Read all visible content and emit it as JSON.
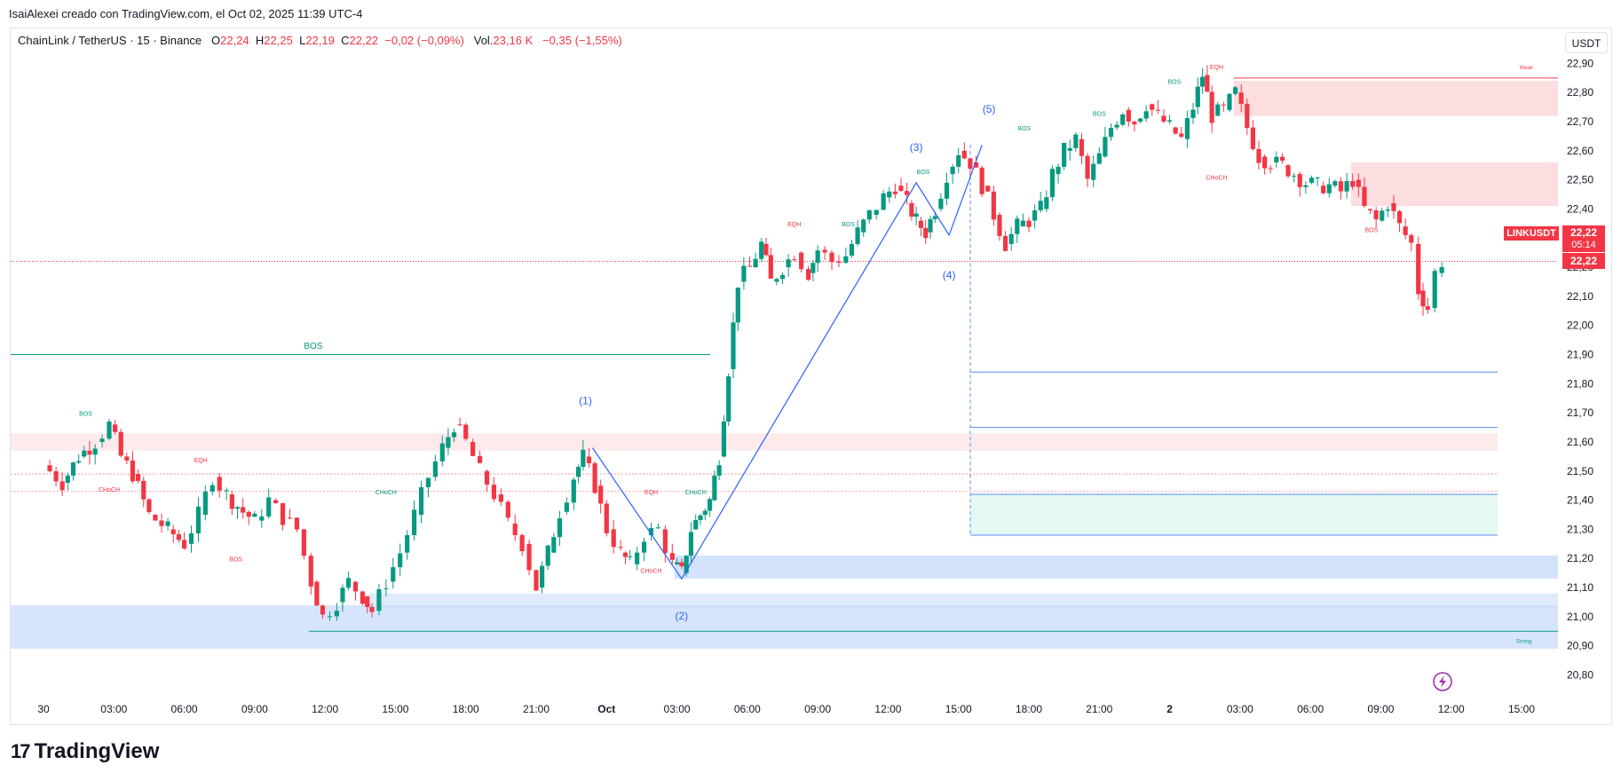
{
  "header": {
    "author_line": "IsaiAlexei creado con TradingView.com, el Oct 02, 2025 11:39 UTC-4"
  },
  "legend": {
    "symbol": "ChainLink / TetherUS · 15 · Binance",
    "o_label": "O",
    "o_value": "22,24",
    "h_label": "H",
    "h_value": "22,25",
    "l_label": "L",
    "l_value": "22,19",
    "c_label": "C",
    "c_value": "22,22",
    "change": "−0,02 (−0,09%)",
    "vol_label": "Vol.",
    "vol_value": "23,16 K",
    "vol_change": "−0,35 (−1,55%)"
  },
  "currency_button": "USDT",
  "ticker_tag": {
    "name": "LINKUSDT",
    "price": "22,22",
    "countdown": "05:14",
    "last": "22,22"
  },
  "brand": {
    "name": "TradingView",
    "logo_glyph": "17"
  },
  "colors": {
    "up": "#089981",
    "down": "#f23645",
    "wave": "#2962ff",
    "bos": "#089981",
    "choch": "#f23645",
    "zone_red": "#fbd5d8",
    "zone_blue": "#c9dcfb",
    "zone_green": "#e3f8ef"
  },
  "chart_data": {
    "type": "candlestick",
    "title": "ChainLink / TetherUS · 15 · Binance",
    "ylim": [
      20.8,
      22.95
    ],
    "y_ticks": [
      "20,80",
      "20,90",
      "21,00",
      "21,10",
      "21,20",
      "21,30",
      "21,40",
      "21,50",
      "21,60",
      "21,70",
      "21,80",
      "21,90",
      "22,00",
      "22,10",
      "22,20",
      "22,30",
      "22,40",
      "22,50",
      "22,60",
      "22,70",
      "22,80",
      "22,90"
    ],
    "y_tick_values": [
      20.8,
      20.9,
      21.0,
      21.1,
      21.2,
      21.3,
      21.4,
      21.5,
      21.6,
      21.7,
      21.8,
      21.9,
      22.0,
      22.1,
      22.2,
      22.3,
      22.4,
      22.5,
      22.6,
      22.7,
      22.8,
      22.9
    ],
    "x_ticks": [
      "30",
      "03:00",
      "06:00",
      "09:00",
      "12:00",
      "15:00",
      "18:00",
      "21:00",
      "Oct",
      "03:00",
      "06:00",
      "09:00",
      "12:00",
      "15:00",
      "18:00",
      "21:00",
      "2",
      "03:00",
      "06:00",
      "09:00",
      "12:00",
      "15:00"
    ],
    "x_tick_hours": [
      0,
      3,
      6,
      9,
      12,
      15,
      18,
      21,
      24,
      27,
      30,
      33,
      36,
      39,
      42,
      45,
      48,
      51,
      54,
      57,
      60,
      63
    ],
    "x_range_hours": [
      -1.4,
      63.6
    ],
    "last_price": 22.22,
    "close_path": [
      [
        0,
        21.52
      ],
      [
        0.8,
        21.46
      ],
      [
        1.5,
        21.55
      ],
      [
        2.2,
        21.6
      ],
      [
        2.8,
        21.66
      ],
      [
        3.3,
        21.55
      ],
      [
        3.8,
        21.49
      ],
      [
        4.5,
        21.35
      ],
      [
        5.3,
        21.3
      ],
      [
        6.0,
        21.25
      ],
      [
        6.6,
        21.35
      ],
      [
        7.2,
        21.48
      ],
      [
        7.8,
        21.42
      ],
      [
        8.5,
        21.36
      ],
      [
        9.0,
        21.33
      ],
      [
        9.6,
        21.4
      ],
      [
        10.2,
        21.34
      ],
      [
        10.8,
        21.3
      ],
      [
        11.4,
        21.12
      ],
      [
        11.9,
        21.0
      ],
      [
        12.5,
        21.05
      ],
      [
        13.0,
        21.12
      ],
      [
        13.6,
        21.07
      ],
      [
        14.0,
        21.02
      ],
      [
        14.6,
        21.12
      ],
      [
        15.2,
        21.22
      ],
      [
        15.8,
        21.35
      ],
      [
        16.4,
        21.48
      ],
      [
        17.0,
        21.58
      ],
      [
        17.5,
        21.66
      ],
      [
        18.0,
        21.6
      ],
      [
        18.6,
        21.5
      ],
      [
        19.2,
        21.42
      ],
      [
        19.8,
        21.32
      ],
      [
        20.4,
        21.25
      ],
      [
        21.0,
        21.1
      ],
      [
        21.5,
        21.22
      ],
      [
        22.0,
        21.36
      ],
      [
        22.6,
        21.48
      ],
      [
        23.0,
        21.55
      ],
      [
        23.5,
        21.45
      ],
      [
        24.0,
        21.3
      ],
      [
        24.6,
        21.22
      ],
      [
        25.0,
        21.18
      ],
      [
        25.6,
        21.28
      ],
      [
        26.2,
        21.3
      ],
      [
        26.8,
        21.18
      ],
      [
        27.2,
        21.15
      ],
      [
        27.6,
        21.3
      ],
      [
        28.0,
        21.35
      ],
      [
        28.4,
        21.4
      ],
      [
        28.8,
        21.55
      ],
      [
        29.2,
        21.85
      ],
      [
        29.6,
        22.15
      ],
      [
        30.1,
        22.2
      ],
      [
        30.6,
        22.28
      ],
      [
        31.0,
        22.15
      ],
      [
        31.5,
        22.2
      ],
      [
        32.0,
        22.25
      ],
      [
        32.6,
        22.18
      ],
      [
        33.0,
        22.26
      ],
      [
        33.6,
        22.22
      ],
      [
        34.2,
        22.24
      ],
      [
        34.7,
        22.32
      ],
      [
        35.2,
        22.38
      ],
      [
        35.8,
        22.44
      ],
      [
        36.3,
        22.48
      ],
      [
        36.8,
        22.42
      ],
      [
        37.2,
        22.36
      ],
      [
        37.6,
        22.32
      ],
      [
        38.0,
        22.4
      ],
      [
        38.5,
        22.52
      ],
      [
        39.0,
        22.6
      ],
      [
        39.5,
        22.56
      ],
      [
        40.0,
        22.48
      ],
      [
        40.5,
        22.38
      ],
      [
        41.0,
        22.28
      ],
      [
        41.5,
        22.34
      ],
      [
        42.0,
        22.36
      ],
      [
        42.5,
        22.4
      ],
      [
        43.0,
        22.52
      ],
      [
        43.5,
        22.6
      ],
      [
        44.0,
        22.64
      ],
      [
        44.5,
        22.5
      ],
      [
        45.0,
        22.58
      ],
      [
        45.5,
        22.68
      ],
      [
        46.0,
        22.74
      ],
      [
        46.5,
        22.7
      ],
      [
        47.0,
        22.76
      ],
      [
        47.5,
        22.72
      ],
      [
        48.0,
        22.68
      ],
      [
        48.5,
        22.64
      ],
      [
        49.0,
        22.75
      ],
      [
        49.4,
        22.86
      ],
      [
        49.8,
        22.72
      ],
      [
        50.3,
        22.74
      ],
      [
        50.8,
        22.8
      ],
      [
        51.3,
        22.68
      ],
      [
        51.8,
        22.58
      ],
      [
        52.3,
        22.56
      ],
      [
        52.8,
        22.55
      ],
      [
        53.3,
        22.52
      ],
      [
        53.8,
        22.49
      ],
      [
        54.3,
        22.48
      ],
      [
        54.8,
        22.48
      ],
      [
        55.3,
        22.46
      ],
      [
        55.8,
        22.5
      ],
      [
        56.3,
        22.4
      ],
      [
        56.8,
        22.36
      ],
      [
        57.3,
        22.42
      ],
      [
        57.8,
        22.34
      ],
      [
        58.3,
        22.28
      ],
      [
        58.6,
        22.12
      ],
      [
        59.0,
        22.06
      ],
      [
        59.3,
        22.18
      ],
      [
        59.6,
        22.22
      ]
    ],
    "annotations": [
      {
        "type": "text",
        "label": "BOS",
        "color": "bos",
        "at_hours": 11.5,
        "at_price": 21.92,
        "size": 10
      },
      {
        "type": "text",
        "label": "BOS",
        "color": "bos",
        "at_hours": 1.8,
        "at_price": 21.69,
        "size": 7
      },
      {
        "type": "text",
        "label": "EQH",
        "color": "choch",
        "at_hours": 6.7,
        "at_price": 21.53,
        "size": 7
      },
      {
        "type": "text",
        "label": "CHoCH",
        "color": "choch",
        "at_hours": 2.8,
        "at_price": 21.43,
        "size": 7
      },
      {
        "type": "text",
        "label": "BOS",
        "color": "choch",
        "at_hours": 8.2,
        "at_price": 21.19,
        "size": 7
      },
      {
        "type": "text",
        "label": "CHoCH",
        "color": "bos",
        "at_hours": 14.6,
        "at_price": 21.42,
        "size": 7
      },
      {
        "type": "text",
        "label": "EQH",
        "color": "choch",
        "at_hours": 25.9,
        "at_price": 21.42,
        "size": 7
      },
      {
        "type": "text",
        "label": "CHoCH",
        "color": "bos",
        "at_hours": 27.8,
        "at_price": 21.42,
        "size": 7
      },
      {
        "type": "text",
        "label": "CHoCH",
        "color": "choch",
        "at_hours": 25.9,
        "at_price": 21.15,
        "size": 7
      },
      {
        "type": "text",
        "label": "EQH",
        "color": "choch",
        "at_hours": 32.0,
        "at_price": 22.34,
        "size": 7
      },
      {
        "type": "text",
        "label": "BOS",
        "color": "bos",
        "at_hours": 34.3,
        "at_price": 22.34,
        "size": 7
      },
      {
        "type": "text",
        "label": "BOS",
        "color": "bos",
        "at_hours": 37.5,
        "at_price": 22.52,
        "size": 7
      },
      {
        "type": "text",
        "label": "BOS",
        "color": "bos",
        "at_hours": 41.8,
        "at_price": 22.67,
        "size": 7
      },
      {
        "type": "text",
        "label": "BOS",
        "color": "bos",
        "at_hours": 45.0,
        "at_price": 22.72,
        "size": 7
      },
      {
        "type": "text",
        "label": "BOS",
        "color": "bos",
        "at_hours": 48.2,
        "at_price": 22.83,
        "size": 7
      },
      {
        "type": "text",
        "label": "EQH",
        "color": "choch",
        "at_hours": 50.0,
        "at_price": 22.88,
        "size": 7
      },
      {
        "type": "text",
        "label": "CHoCH",
        "color": "choch",
        "at_hours": 50.0,
        "at_price": 22.5,
        "size": 7
      },
      {
        "type": "text",
        "label": "BOS",
        "color": "choch",
        "at_hours": 56.6,
        "at_price": 22.32,
        "size": 7
      },
      {
        "type": "text",
        "label": "Weak",
        "color": "choch",
        "at_hours": 63.2,
        "at_price": 22.88,
        "size": 6
      },
      {
        "type": "text",
        "label": "Strong",
        "color": "bos",
        "at_hours": 63.1,
        "at_price": 20.91,
        "size": 6
      }
    ],
    "waves": [
      {
        "label": "(1)",
        "at_hours": 23.1,
        "at_price": 21.73
      },
      {
        "label": "(2)",
        "at_hours": 27.2,
        "at_price": 20.99
      },
      {
        "label": "(3)",
        "at_hours": 37.2,
        "at_price": 22.6
      },
      {
        "label": "(4)",
        "at_hours": 38.6,
        "at_price": 22.16
      },
      {
        "label": "(5)",
        "at_hours": 40.3,
        "at_price": 22.73
      }
    ],
    "wave_path": [
      [
        23.4,
        21.58
      ],
      [
        27.2,
        21.13
      ],
      [
        37.2,
        22.49
      ],
      [
        38.6,
        22.31
      ],
      [
        40.0,
        22.62
      ]
    ]
  }
}
